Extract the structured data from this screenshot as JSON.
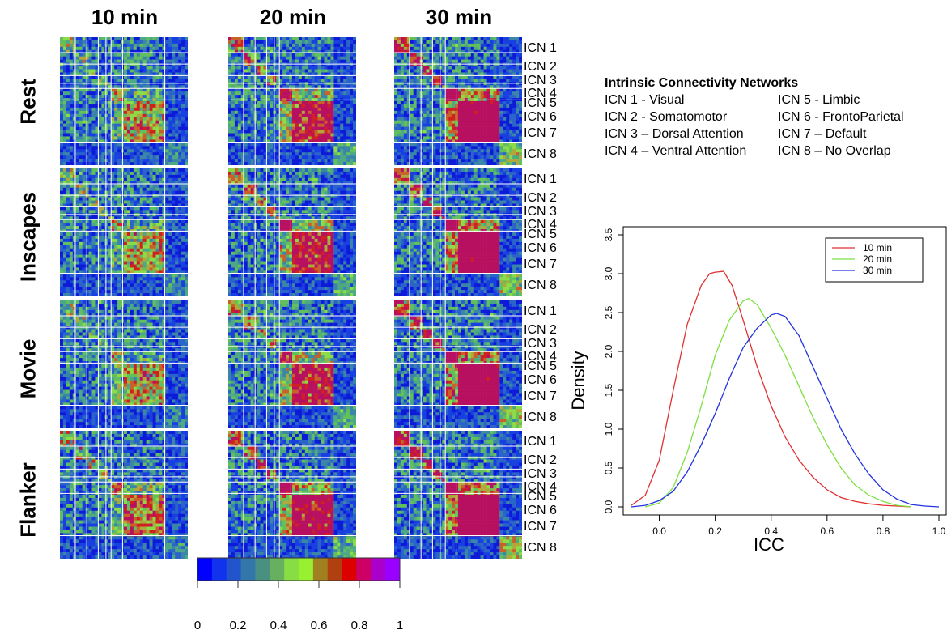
{
  "conditions": [
    "10 min",
    "20 min",
    "30 min"
  ],
  "tasks": [
    "Rest",
    "Inscapes",
    "Movie",
    "Flanker"
  ],
  "icn_labels": [
    "ICN 1",
    "ICN 2",
    "ICN 3",
    "ICN 4",
    "ICN 5",
    "ICN 6",
    "ICN 7",
    "ICN 8"
  ],
  "network_legend": {
    "title": "Intrinsic Connectivity Networks",
    "left": [
      "ICN 1 - Visual",
      "ICN 2 - Somatomotor",
      "ICN 3 – Dorsal Attention",
      "ICN 4 – Ventral Attention"
    ],
    "right": [
      "ICN 5 - Limbic",
      "ICN 6 - FrontoParietal",
      "ICN 7 – Default",
      "ICN 8 – No Overlap"
    ]
  },
  "colorbar": {
    "ticks": [
      "0",
      "0.2",
      "0.4",
      "0.6",
      "0.8",
      "1"
    ],
    "colors": [
      "#0000ff",
      "#1133ee",
      "#2255cc",
      "#3377aa",
      "#4a9080",
      "#66b060",
      "#88dd44",
      "#99f030",
      "#a08020",
      "#b04010",
      "#dd0000",
      "#cc0066",
      "#aa00cc",
      "#9900ff"
    ]
  },
  "chart_data": {
    "type": "line",
    "title": "",
    "xlabel": "ICC",
    "ylabel": "Density",
    "xlim": [
      -0.1,
      1.0
    ],
    "ylim": [
      0,
      3.5
    ],
    "xticks": [
      "0.0",
      "0.2",
      "0.4",
      "0.6",
      "0.8",
      "1.0"
    ],
    "yticks": [
      "0.0",
      "0.5",
      "1.0",
      "1.5",
      "2.0",
      "2.5",
      "3.0",
      "3.5"
    ],
    "legend_position": "top-right",
    "series": [
      {
        "name": "10 min",
        "color": "#e03030",
        "x": [
          -0.1,
          -0.05,
          0.0,
          0.05,
          0.1,
          0.15,
          0.18,
          0.2,
          0.23,
          0.26,
          0.3,
          0.35,
          0.4,
          0.45,
          0.5,
          0.55,
          0.6,
          0.65,
          0.7,
          0.75,
          0.8,
          0.85,
          0.9
        ],
        "y": [
          0.02,
          0.15,
          0.6,
          1.5,
          2.35,
          2.85,
          3.0,
          3.02,
          3.03,
          2.85,
          2.4,
          1.8,
          1.3,
          0.9,
          0.6,
          0.38,
          0.22,
          0.12,
          0.07,
          0.04,
          0.02,
          0.01,
          0.0
        ]
      },
      {
        "name": "20 min",
        "color": "#7de040",
        "x": [
          -0.05,
          0.0,
          0.05,
          0.1,
          0.15,
          0.2,
          0.25,
          0.3,
          0.32,
          0.35,
          0.4,
          0.45,
          0.5,
          0.55,
          0.6,
          0.65,
          0.7,
          0.75,
          0.8,
          0.85,
          0.9
        ],
        "y": [
          0.0,
          0.05,
          0.25,
          0.7,
          1.3,
          1.95,
          2.4,
          2.65,
          2.68,
          2.6,
          2.3,
          1.95,
          1.55,
          1.15,
          0.8,
          0.5,
          0.28,
          0.15,
          0.07,
          0.02,
          0.0
        ]
      },
      {
        "name": "30 min",
        "color": "#2233dd",
        "x": [
          -0.1,
          -0.05,
          0.0,
          0.05,
          0.1,
          0.15,
          0.2,
          0.25,
          0.3,
          0.35,
          0.4,
          0.42,
          0.45,
          0.5,
          0.55,
          0.6,
          0.65,
          0.7,
          0.75,
          0.8,
          0.85,
          0.9,
          0.95,
          1.0
        ],
        "y": [
          0.0,
          0.02,
          0.08,
          0.2,
          0.45,
          0.8,
          1.2,
          1.65,
          2.05,
          2.3,
          2.47,
          2.49,
          2.45,
          2.2,
          1.8,
          1.4,
          1.0,
          0.68,
          0.42,
          0.22,
          0.1,
          0.03,
          0.01,
          0.0
        ]
      }
    ]
  }
}
